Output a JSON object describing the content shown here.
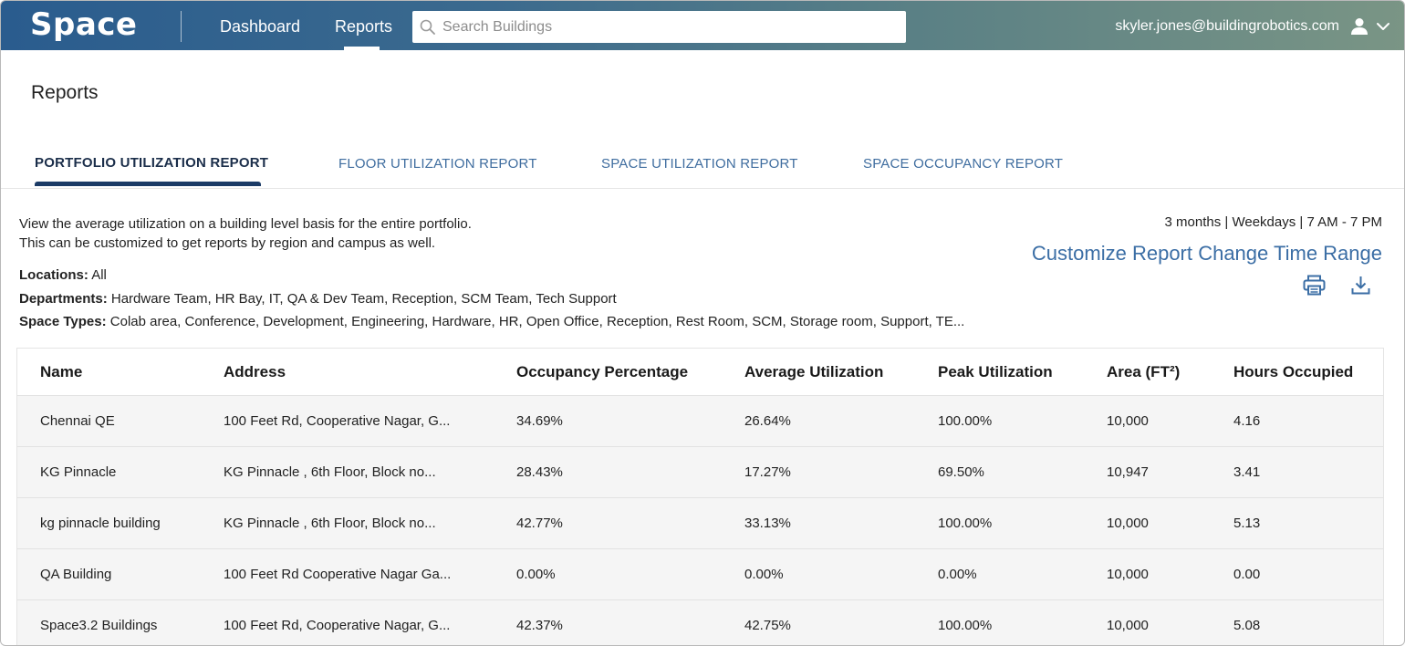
{
  "app": {
    "logo": "Space"
  },
  "nav": {
    "dashboard": "Dashboard",
    "reports": "Reports"
  },
  "search": {
    "placeholder": "Search Buildings"
  },
  "user": {
    "email": "skyler.jones@buildingrobotics.com"
  },
  "page": {
    "title": "Reports"
  },
  "tabs": [
    {
      "label": "PORTFOLIO UTILIZATION REPORT",
      "active": true
    },
    {
      "label": "FLOOR UTILIZATION REPORT",
      "active": false
    },
    {
      "label": "SPACE UTILIZATION REPORT",
      "active": false
    },
    {
      "label": "SPACE OCCUPANCY REPORT",
      "active": false
    }
  ],
  "description": {
    "line1": "View the average utilization on a building level basis for the entire portfolio.",
    "line2": "This can be customized to get reports by region and campus as well."
  },
  "time_range": "3 months | Weekdays | 7 AM - 7 PM",
  "actions": {
    "customize": "Customize Report",
    "change_time": "Change Time Range"
  },
  "icons": {
    "print": "print-icon",
    "download": "download-icon",
    "search": "search-icon",
    "user": "user-icon",
    "chevron": "chevron-down-icon"
  },
  "filters": {
    "locations_label": "Locations:",
    "locations_value": "All",
    "departments_label": "Departments:",
    "departments_value": "Hardware Team, HR Bay, IT, QA & Dev Team, Reception, SCM Team, Tech Support",
    "space_types_label": "Space Types:",
    "space_types_value": "Colab area, Conference, Development, Engineering, Hardware, HR, Open Office, Reception, Rest Room, SCM, Storage room, Support, TE..."
  },
  "table": {
    "headers": [
      "Name",
      "Address",
      "Occupancy Percentage",
      "Average Utilization",
      "Peak Utilization",
      "Area (FT²)",
      "Hours Occupied"
    ],
    "rows": [
      [
        "Chennai QE",
        "100 Feet Rd, Cooperative Nagar, G...",
        "34.69%",
        "26.64%",
        "100.00%",
        "10,000",
        "4.16"
      ],
      [
        "KG Pinnacle",
        "KG Pinnacle , 6th Floor, Block no...",
        "28.43%",
        "17.27%",
        "69.50%",
        "10,947",
        "3.41"
      ],
      [
        "kg pinnacle building",
        "KG Pinnacle , 6th Floor, Block no...",
        "42.77%",
        "33.13%",
        "100.00%",
        "10,000",
        "5.13"
      ],
      [
        "QA Building",
        "100 Feet Rd Cooperative Nagar Ga...",
        "0.00%",
        "0.00%",
        "0.00%",
        "10,000",
        "0.00"
      ],
      [
        "Space3.2 Buildings",
        "100 Feet Rd, Cooperative Nagar, G...",
        "42.37%",
        "42.75%",
        "100.00%",
        "10,000",
        "5.08"
      ]
    ]
  },
  "colors": {
    "accent": "#3b6ea5",
    "active_tab": "#1b3b66",
    "nav_start": "#2a5c8e",
    "nav_end": "#7a9585"
  }
}
